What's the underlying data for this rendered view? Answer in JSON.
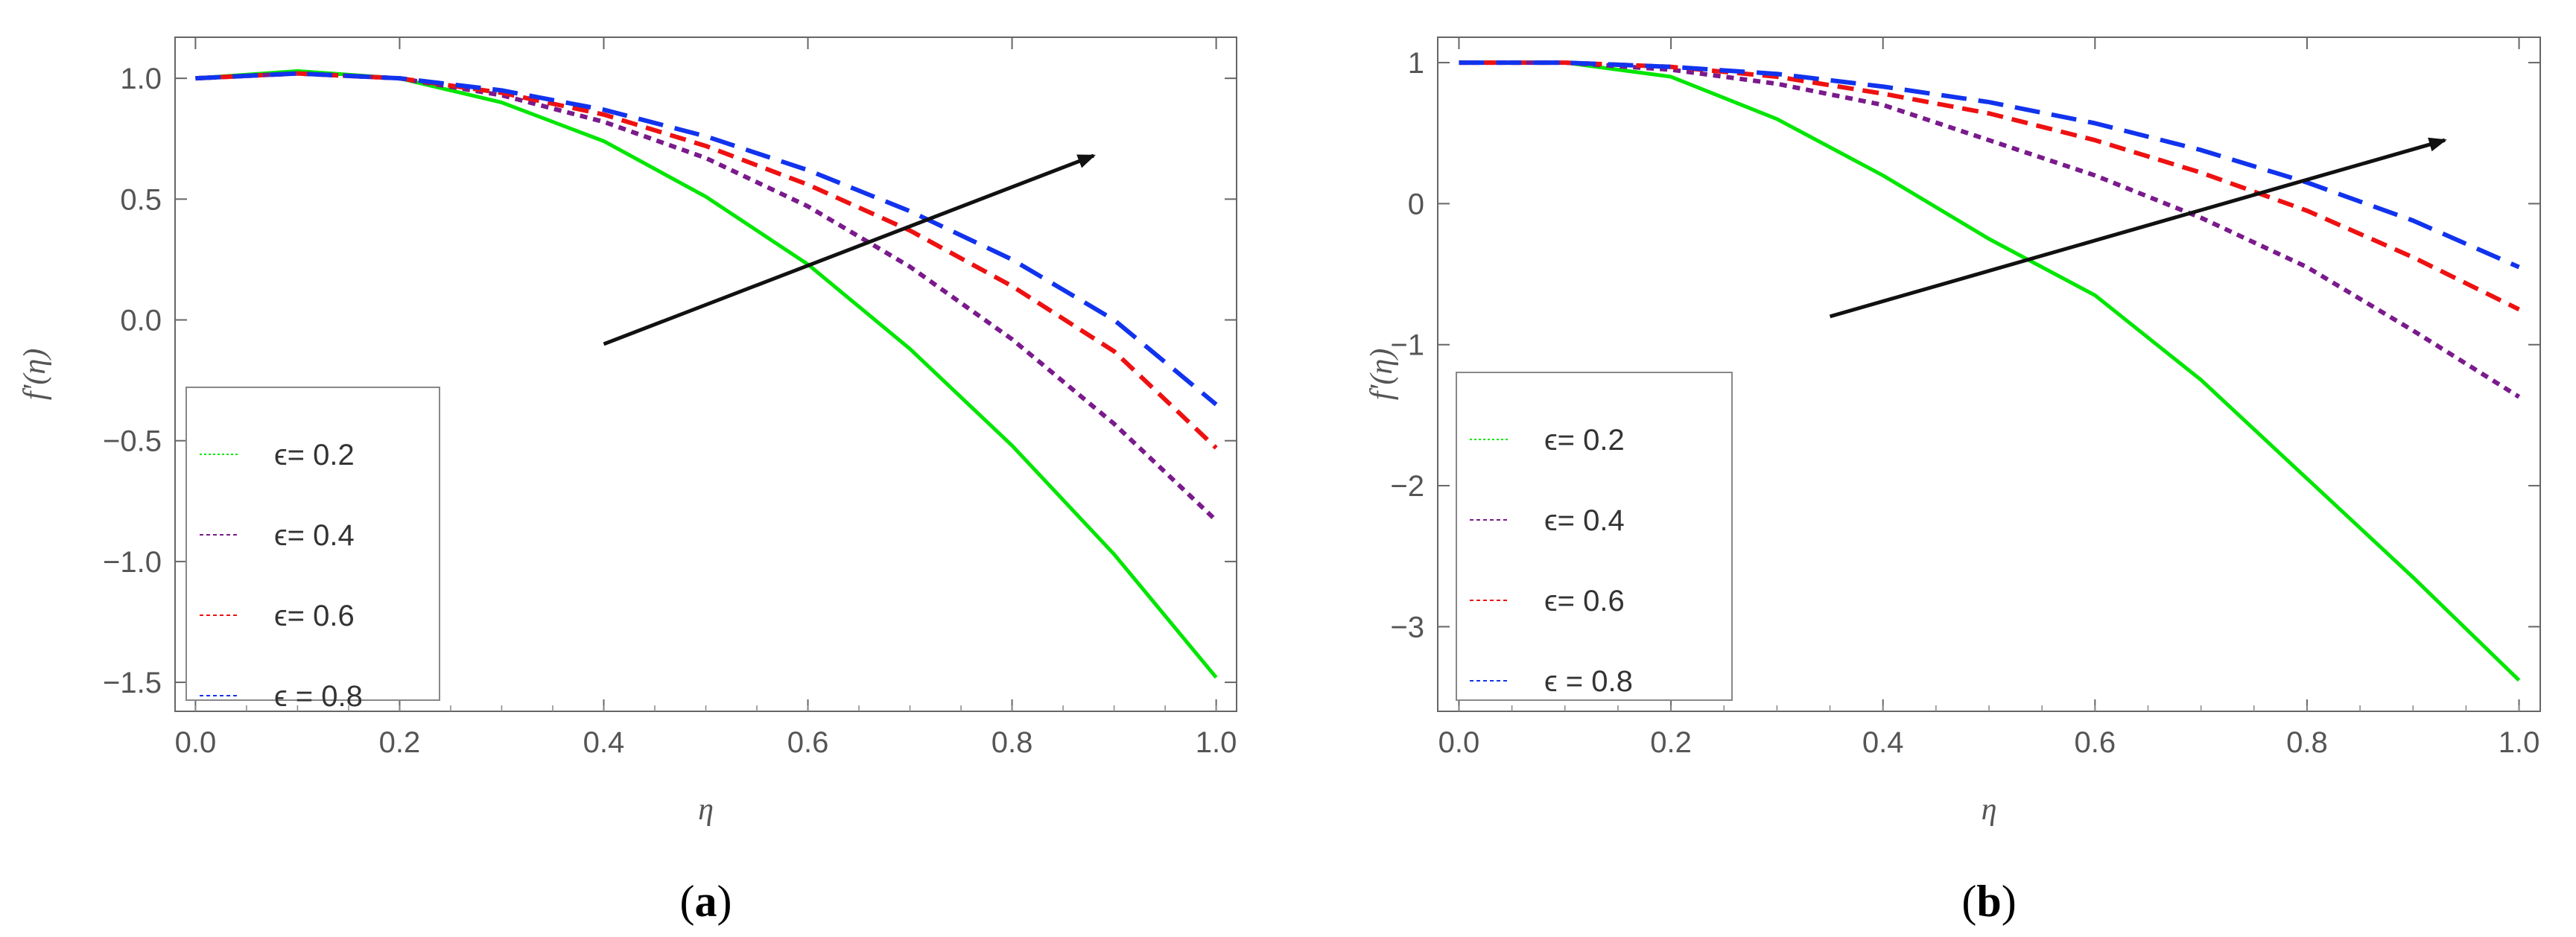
{
  "chart_data": [
    {
      "type": "line",
      "panel": "a",
      "caption_open": "(",
      "caption_letter": "a",
      "caption_close": ")",
      "xlabel": "η",
      "ylabel": "f'(η)",
      "xlim": [
        -0.02,
        1.02
      ],
      "ylim": [
        -1.62,
        1.17
      ],
      "xticks": [
        0.0,
        0.2,
        0.4,
        0.6,
        0.8,
        1.0
      ],
      "xtick_labels": [
        "0.0",
        "0.2",
        "0.4",
        "0.6",
        "0.8",
        "1.0"
      ],
      "yticks": [
        -1.5,
        -1.0,
        -0.5,
        0.0,
        0.5,
        1.0
      ],
      "ytick_labels": [
        "−1.5",
        "−1.0",
        "−0.5",
        "0.0",
        "0.5",
        "1.0"
      ],
      "legend_position": "bottom-left",
      "arrow": {
        "from": [
          0.4,
          -0.1
        ],
        "to": [
          0.88,
          0.68
        ]
      },
      "series": [
        {
          "name": "ϵ= 0.2",
          "color": "#00e600",
          "dash": "solid",
          "x": [
            0,
            0.1,
            0.2,
            0.3,
            0.4,
            0.5,
            0.6,
            0.7,
            0.8,
            0.9,
            1.0
          ],
          "y": [
            1.0,
            1.03,
            1.0,
            0.9,
            0.74,
            0.51,
            0.23,
            -0.12,
            -0.52,
            -0.97,
            -1.48
          ]
        },
        {
          "name": "ϵ= 0.4",
          "color": "#7a1a8c",
          "dash": "short",
          "x": [
            0,
            0.1,
            0.2,
            0.3,
            0.4,
            0.5,
            0.6,
            0.7,
            0.8,
            0.9,
            1.0
          ],
          "y": [
            1.0,
            1.02,
            1.0,
            0.93,
            0.82,
            0.67,
            0.47,
            0.22,
            -0.08,
            -0.43,
            -0.83
          ]
        },
        {
          "name": "ϵ= 0.6",
          "color": "#ee1111",
          "dash": "medium",
          "x": [
            0,
            0.1,
            0.2,
            0.3,
            0.4,
            0.5,
            0.6,
            0.7,
            0.8,
            0.9,
            1.0
          ],
          "y": [
            1.0,
            1.02,
            1.0,
            0.94,
            0.85,
            0.72,
            0.56,
            0.37,
            0.14,
            -0.13,
            -0.53
          ]
        },
        {
          "name": "ϵ = 0.8",
          "color": "#1133ee",
          "dash": "long",
          "x": [
            0,
            0.1,
            0.2,
            0.3,
            0.4,
            0.5,
            0.6,
            0.7,
            0.8,
            0.9,
            1.0
          ],
          "y": [
            1.0,
            1.02,
            1.0,
            0.95,
            0.87,
            0.76,
            0.62,
            0.45,
            0.25,
            0.0,
            -0.35
          ]
        }
      ]
    },
    {
      "type": "line",
      "panel": "b",
      "caption_open": "(",
      "caption_letter": "b",
      "caption_close": ")",
      "xlabel": "η",
      "ylabel": "f'(η)",
      "xlim": [
        -0.02,
        1.02
      ],
      "ylim": [
        -3.6,
        1.18
      ],
      "xticks": [
        0.0,
        0.2,
        0.4,
        0.6,
        0.8,
        1.0
      ],
      "xtick_labels": [
        "0.0",
        "0.2",
        "0.4",
        "0.6",
        "0.8",
        "1.0"
      ],
      "yticks": [
        -3,
        -2,
        -1,
        0,
        1
      ],
      "ytick_labels": [
        "−3",
        "−2",
        "−1",
        "0",
        "1"
      ],
      "legend_position": "bottom-left",
      "arrow": {
        "from": [
          0.35,
          -0.8
        ],
        "to": [
          0.93,
          0.45
        ]
      },
      "series": [
        {
          "name": "ϵ= 0.2",
          "color": "#00e600",
          "dash": "solid",
          "x": [
            0,
            0.1,
            0.2,
            0.3,
            0.4,
            0.5,
            0.6,
            0.7,
            0.8,
            0.9,
            1.0
          ],
          "y": [
            1.0,
            1.0,
            0.9,
            0.6,
            0.2,
            -0.25,
            -0.65,
            -1.25,
            -1.95,
            -2.65,
            -3.38
          ]
        },
        {
          "name": "ϵ= 0.4",
          "color": "#7a1a8c",
          "dash": "short",
          "x": [
            0,
            0.1,
            0.2,
            0.3,
            0.4,
            0.5,
            0.6,
            0.7,
            0.8,
            0.9,
            1.0
          ],
          "y": [
            1.0,
            1.0,
            0.95,
            0.85,
            0.7,
            0.45,
            0.2,
            -0.1,
            -0.45,
            -0.9,
            -1.37
          ]
        },
        {
          "name": "ϵ= 0.6",
          "color": "#ee1111",
          "dash": "medium",
          "x": [
            0,
            0.1,
            0.2,
            0.3,
            0.4,
            0.5,
            0.6,
            0.7,
            0.8,
            0.9,
            1.0
          ],
          "y": [
            1.0,
            1.0,
            0.97,
            0.9,
            0.78,
            0.64,
            0.45,
            0.22,
            -0.05,
            -0.38,
            -0.75
          ]
        },
        {
          "name": "ϵ = 0.8",
          "color": "#1133ee",
          "dash": "long",
          "x": [
            0,
            0.1,
            0.2,
            0.3,
            0.4,
            0.5,
            0.6,
            0.7,
            0.8,
            0.9,
            1.0
          ],
          "y": [
            1.0,
            1.0,
            0.97,
            0.92,
            0.83,
            0.72,
            0.57,
            0.38,
            0.15,
            -0.12,
            -0.45
          ]
        }
      ]
    }
  ]
}
